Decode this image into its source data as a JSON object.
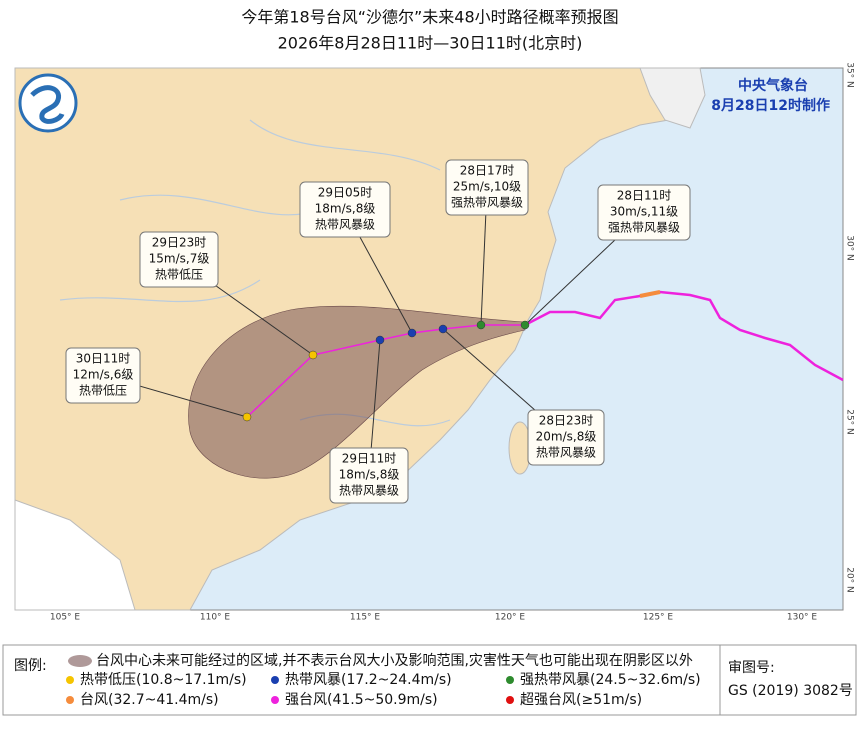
{
  "header": {
    "title": "今年第18号台风“沙德尔”未来48小时路径概率预报图",
    "subtitle": "2026年8月28日11时—30日11时(北京时)"
  },
  "issuer": {
    "agency": "中央气象台",
    "issued": "8月28日12时制作"
  },
  "map": {
    "lon_labels": [
      "105° E",
      "110° E",
      "115° E",
      "120° E",
      "125° E",
      "130° E"
    ],
    "lat_labels": [
      "35° N",
      "30° N",
      "25° N",
      "20° N"
    ],
    "forecast_points": [
      {
        "time": "28日11时",
        "wind": "30m/s,11级",
        "category": "强热带风暴级"
      },
      {
        "time": "28日17时",
        "wind": "25m/s,10级",
        "category": "强热带风暴级"
      },
      {
        "time": "28日23时",
        "wind": "20m/s,8级",
        "category": "热带风暴级"
      },
      {
        "time": "29日05时",
        "wind": "18m/s,8级",
        "category": "热带风暴级"
      },
      {
        "time": "29日11时",
        "wind": "18m/s,8级",
        "category": "热带风暴级"
      },
      {
        "time": "29日23时",
        "wind": "15m/s,7级",
        "category": "热带低压"
      },
      {
        "time": "30日11时",
        "wind": "12m/s,6级",
        "category": "热带低压"
      }
    ]
  },
  "legend": {
    "title": "图例:",
    "area": "台风中心未来可能经过的区域,并不表示台风大小及影响范围,灾害性天气也可能出现在阴影区以外",
    "items": [
      "热带低压(10.8~17.1m/s)",
      "热带风暴(17.2~24.4m/s)",
      "强热带风暴(24.5~32.6m/s)",
      "台风(32.7~41.4m/s)",
      "强台风(41.5~50.9m/s)",
      "超强台风(≥51m/s)"
    ]
  },
  "review": {
    "label": "审图号:",
    "number": "GS (2019) 3082号"
  }
}
